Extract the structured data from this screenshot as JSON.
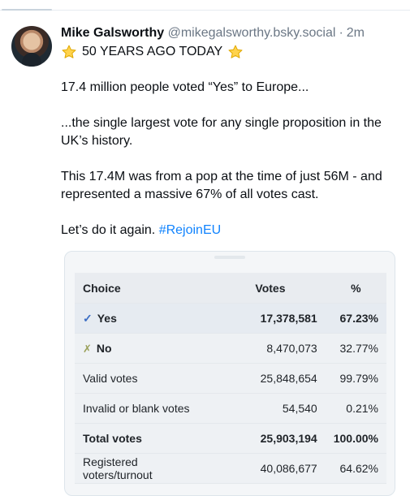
{
  "post": {
    "author_name": "Mike Galsworthy",
    "author_handle": "@mikegalsworthy.bsky.social",
    "separator": "·",
    "time": "2m",
    "headline": "50 YEARS AGO TODAY",
    "paragraphs": [
      "17.4 million people voted “Yes” to Europe...",
      "...the single largest vote for any single proposition in the UK’s history.",
      "This 17.4M was from a pop at the time of just 56M - and represented a massive 67% of all votes cast."
    ],
    "closing_text": "Let’s do it again.",
    "hashtag": "#RejoinEU"
  },
  "table": {
    "headers": {
      "choice": "Choice",
      "votes": "Votes",
      "pct": "%"
    },
    "rows": [
      {
        "label": "Yes",
        "votes": "17,378,581",
        "pct": "67.23%"
      },
      {
        "label": "No",
        "votes": "8,470,073",
        "pct": "32.77%"
      },
      {
        "label": "Valid votes",
        "votes": "25,848,654",
        "pct": "99.79%"
      },
      {
        "label": "Invalid or blank votes",
        "votes": "54,540",
        "pct": "0.21%"
      },
      {
        "label": "Total votes",
        "votes": "25,903,194",
        "pct": "100.00%"
      },
      {
        "label": "Registered voters/turnout",
        "votes": "40,086,677",
        "pct": "64.62%"
      }
    ],
    "yes_mark": "✓",
    "no_mark": "✗"
  },
  "icons": {
    "avatar": "avatar",
    "star": "star-icon"
  }
}
